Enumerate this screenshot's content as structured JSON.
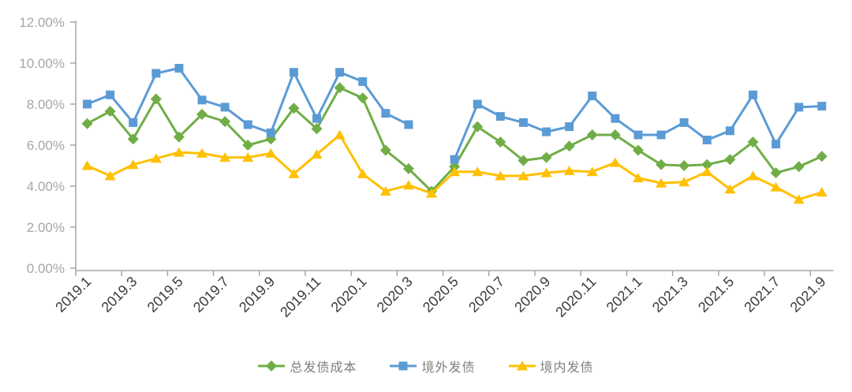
{
  "chart_data": {
    "type": "line",
    "title": "",
    "xlabel": "",
    "ylabel": "",
    "grid": false,
    "legend_position": "bottom",
    "ylim": [
      0,
      12
    ],
    "y_tick_step": 2,
    "y_tick_labels": [
      "0.00%",
      "2.00%",
      "4.00%",
      "6.00%",
      "8.00%",
      "10.00%",
      "12.00%"
    ],
    "x": [
      "2019.1",
      "2019.2",
      "2019.3",
      "2019.4",
      "2019.5",
      "2019.6",
      "2019.7",
      "2019.8",
      "2019.9",
      "2019.10",
      "2019.11",
      "2019.12",
      "2020.1",
      "2020.2",
      "2020.3",
      "2020.4",
      "2020.5",
      "2020.6",
      "2020.7",
      "2020.8",
      "2020.9",
      "2020.10",
      "2020.11",
      "2020.12",
      "2021.1",
      "2021.2",
      "2021.3",
      "2021.4",
      "2021.5",
      "2021.6",
      "2021.7",
      "2021.8",
      "2021.9"
    ],
    "x_tick_labels": [
      "2019.1",
      "2019.3",
      "2019.5",
      "2019.7",
      "2019.9",
      "2019.11",
      "2020.1",
      "2020.3",
      "2020.5",
      "2020.7",
      "2020.9",
      "2020.11",
      "2021.1",
      "2021.3",
      "2021.5",
      "2021.7",
      "2021.9"
    ],
    "series": [
      {
        "key": "total-issuance-cost",
        "name": "总发债成本",
        "marker": "diamond",
        "color": "#70AD47",
        "values": [
          7.05,
          7.65,
          6.3,
          8.25,
          6.4,
          7.5,
          7.15,
          6.0,
          6.3,
          7.8,
          6.8,
          8.8,
          8.3,
          5.75,
          4.85,
          3.75,
          4.95,
          6.9,
          6.15,
          5.25,
          5.4,
          5.95,
          6.5,
          6.5,
          5.75,
          5.05,
          5.0,
          5.05,
          5.3,
          6.15,
          4.65,
          4.95,
          5.45
        ]
      },
      {
        "key": "offshore-issuance",
        "name": "境外发债",
        "marker": "square",
        "color": "#5B9BD5",
        "values": [
          8.0,
          8.45,
          7.1,
          9.5,
          9.75,
          8.2,
          7.85,
          7.0,
          6.6,
          9.55,
          7.3,
          9.55,
          9.1,
          7.55,
          7.0,
          null,
          5.3,
          8.0,
          7.4,
          7.1,
          6.65,
          6.9,
          8.4,
          7.3,
          6.5,
          6.5,
          7.1,
          6.25,
          6.7,
          8.45,
          6.05,
          7.85,
          7.9
        ]
      },
      {
        "key": "onshore-issuance",
        "name": "境内发债",
        "marker": "triangle",
        "color": "#FFC000",
        "values": [
          5.0,
          4.5,
          5.05,
          5.35,
          5.65,
          5.6,
          5.4,
          5.4,
          5.6,
          4.6,
          5.55,
          6.5,
          4.6,
          3.75,
          4.05,
          3.65,
          4.7,
          4.7,
          4.5,
          4.5,
          4.65,
          4.75,
          4.7,
          5.15,
          4.4,
          4.15,
          4.2,
          4.7,
          3.85,
          4.5,
          3.95,
          3.35,
          3.7
        ]
      }
    ],
    "axis_color": "#A6A6A6",
    "y_label_color": "#A6A6A6",
    "x_label_color": "#3b3b3b",
    "legend_text_color": "#808080"
  }
}
